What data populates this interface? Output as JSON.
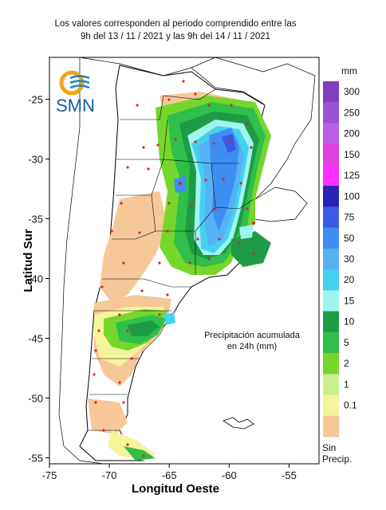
{
  "header": {
    "line1": "Los valores corresponden al periodo comprendido entre las",
    "line2": "9h del 13 / 11 / 2021  y las 9h del 14 / 11 / 2021"
  },
  "logo": {
    "text": "SMN"
  },
  "axes": {
    "xlabel": "Longitud Oeste",
    "ylabel": "Latitud Sur",
    "x_ticks": [
      "-75",
      "-70",
      "-65",
      "-60",
      "-55"
    ],
    "y_ticks": [
      "-25",
      "-30",
      "-35",
      "-40",
      "-45",
      "-50",
      "-55"
    ],
    "xlim": [
      -75,
      -52.5
    ],
    "ylim": [
      -55.5,
      -21.5
    ]
  },
  "annotation": {
    "line1": "Precipitación acumulada",
    "line2": "en 24h (mm)"
  },
  "legend": {
    "unit": "mm",
    "no_precip_line1": "Sin",
    "no_precip_line2": "Precip.",
    "levels": [
      {
        "label": "300",
        "color": "#7f3fbf"
      },
      {
        "label": "250",
        "color": "#9a52d6"
      },
      {
        "label": "200",
        "color": "#bb5ee6"
      },
      {
        "label": "150",
        "color": "#e040e0"
      },
      {
        "label": "125",
        "color": "#ff2dff"
      },
      {
        "label": "100",
        "color": "#2a23b8"
      },
      {
        "label": "75",
        "color": "#3b59e6"
      },
      {
        "label": "50",
        "color": "#3d8ef0"
      },
      {
        "label": "30",
        "color": "#55b2f5"
      },
      {
        "label": "20",
        "color": "#46d0f0"
      },
      {
        "label": "15",
        "color": "#a0f5ef"
      },
      {
        "label": "10",
        "color": "#1f9b45"
      },
      {
        "label": "5",
        "color": "#2fbf4a"
      },
      {
        "label": "2",
        "color": "#77d62c"
      },
      {
        "label": "1",
        "color": "#c9f08c"
      },
      {
        "label": "0.1",
        "color": "#f4f49a"
      },
      {
        "label": "",
        "color": "#f6c898"
      }
    ]
  },
  "colors": {
    "background": "#ffffff",
    "land_no_precip": "#ffffff",
    "ocean": "#ffffff",
    "station_dot": "#d7262d",
    "borders": "#000000",
    "logo_orange": "#f0a51a",
    "logo_blue": "#1a86c8"
  }
}
